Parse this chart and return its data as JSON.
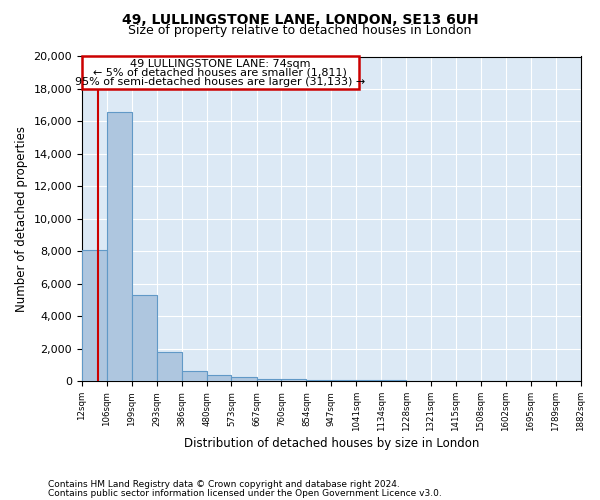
{
  "title1": "49, LULLINGSTONE LANE, LONDON, SE13 6UH",
  "title2": "Size of property relative to detached houses in London",
  "xlabel": "Distribution of detached houses by size in London",
  "ylabel": "Number of detached properties",
  "footnote1": "Contains HM Land Registry data © Crown copyright and database right 2024.",
  "footnote2": "Contains public sector information licensed under the Open Government Licence v3.0.",
  "annotation_line1": "49 LULLINGSTONE LANE: 74sqm",
  "annotation_line2": "← 5% of detached houses are smaller (1,811)",
  "annotation_line3": "95% of semi-detached houses are larger (31,133) →",
  "property_size": 74,
  "bar_edges": [
    12,
    106,
    199,
    293,
    386,
    480,
    573,
    667,
    760,
    854,
    947,
    1041,
    1134,
    1228,
    1321,
    1415,
    1508,
    1602,
    1695,
    1789,
    1882
  ],
  "bar_heights": [
    8100,
    16600,
    5300,
    1800,
    630,
    360,
    240,
    160,
    130,
    100,
    80,
    70,
    60,
    50,
    40,
    30,
    20,
    15,
    10,
    8
  ],
  "bar_color": "#aec6df",
  "bar_edge_color": "#6199c7",
  "red_line_color": "#cc0000",
  "annotation_box_color": "#cc0000",
  "bg_color": "#dce9f5",
  "ylim": [
    0,
    20000
  ],
  "yticks": [
    0,
    2000,
    4000,
    6000,
    8000,
    10000,
    12000,
    14000,
    16000,
    18000,
    20000
  ]
}
